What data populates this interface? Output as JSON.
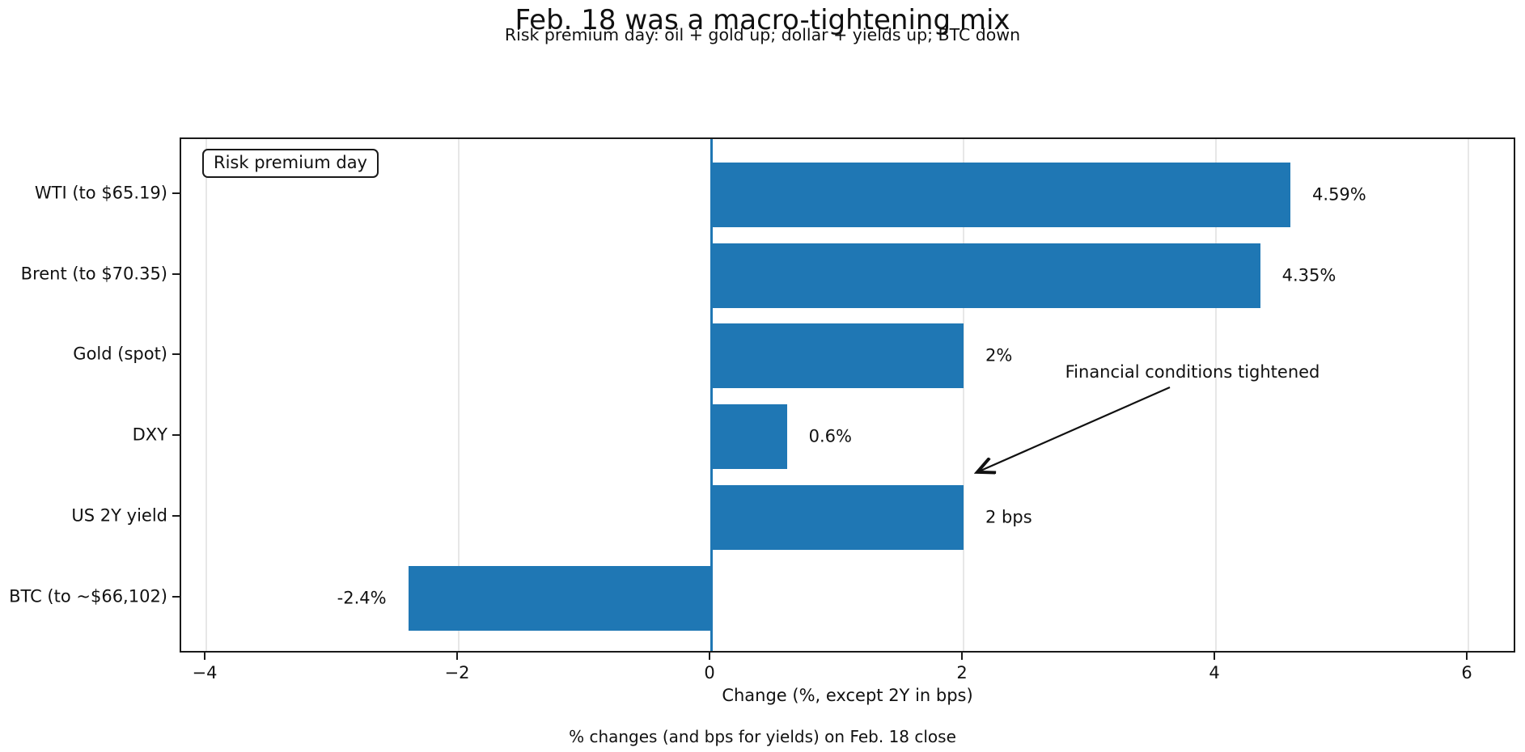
{
  "title": "Feb. 18 was a macro-tightening mix",
  "subtitle": "Risk premium day: oil + gold up; dollar + yields up; BTC down",
  "legend_label": "Risk premium day",
  "annotation_label": "Financial conditions tightened",
  "footer": "% changes (and bps for yields) on Feb. 18 close",
  "colors": {
    "bar": "#1f77b4",
    "zero_line": "#1f77b4",
    "grid": "#e7e7e7",
    "text": "#111111"
  },
  "chart_data": {
    "type": "bar",
    "orientation": "horizontal",
    "title": "Feb. 18 was a macro-tightening mix",
    "subtitle": "Risk premium day: oil + gold up; dollar + yields up; BTC down",
    "xlabel": "Change (%, except 2Y in bps)",
    "ylabel": "",
    "categories": [
      "WTI (to $65.19)",
      "Brent (to $70.35)",
      "Gold (spot)",
      "DXY",
      "US 2Y yield",
      "BTC (to ~$66,102)"
    ],
    "values": [
      4.59,
      4.35,
      2,
      0.6,
      2,
      -2.4
    ],
    "value_labels": [
      "4.59%",
      "4.35%",
      "2%",
      "0.6%",
      "2 bps",
      "-2.4%"
    ],
    "units_note": "percent for all rows except US 2Y yield which is in bps",
    "x_ticks": [
      -4,
      -2,
      0,
      2,
      4,
      6
    ],
    "x_tick_labels": [
      "−4",
      "−2",
      "0",
      "2",
      "4",
      "6"
    ],
    "xlim": [
      -4.2,
      6.38
    ],
    "grid": "vertical",
    "zero_line": true,
    "legend": "Risk premium day",
    "legend_position": "upper-left",
    "annotation": {
      "text": "Financial conditions tightened",
      "points_to": {
        "x": 2.05,
        "row": "between DXY and US 2Y yield"
      }
    }
  }
}
